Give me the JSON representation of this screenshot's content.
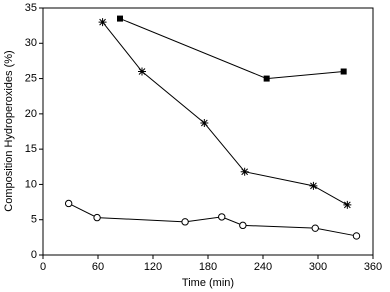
{
  "chart_data": {
    "type": "line",
    "x_label": "Time (min)",
    "y_label": "Composition Hydroperoxides (%)",
    "xlim": [
      0,
      360
    ],
    "xticks": [
      0,
      60,
      120,
      180,
      240,
      300,
      360
    ],
    "ylim": [
      0,
      35
    ],
    "yticks": [
      0,
      5,
      10,
      15,
      20,
      25,
      30,
      35
    ],
    "series": [
      {
        "color": "#000000",
        "marker": "square",
        "x": [
          84,
          244,
          328
        ],
        "values": [
          33.5,
          25,
          26
        ]
      },
      {
        "color": "#000000",
        "marker": "asterisk",
        "x": [
          65,
          108,
          176,
          220,
          295,
          332
        ],
        "values": [
          33,
          26,
          18.7,
          11.8,
          9.8,
          7.1
        ]
      },
      {
        "color": "#000000",
        "marker": "circle",
        "x": [
          28,
          59,
          155,
          195,
          218,
          297,
          342
        ],
        "values": [
          7.3,
          5.3,
          4.7,
          5.4,
          4.2,
          3.8,
          2.7
        ]
      }
    ]
  }
}
